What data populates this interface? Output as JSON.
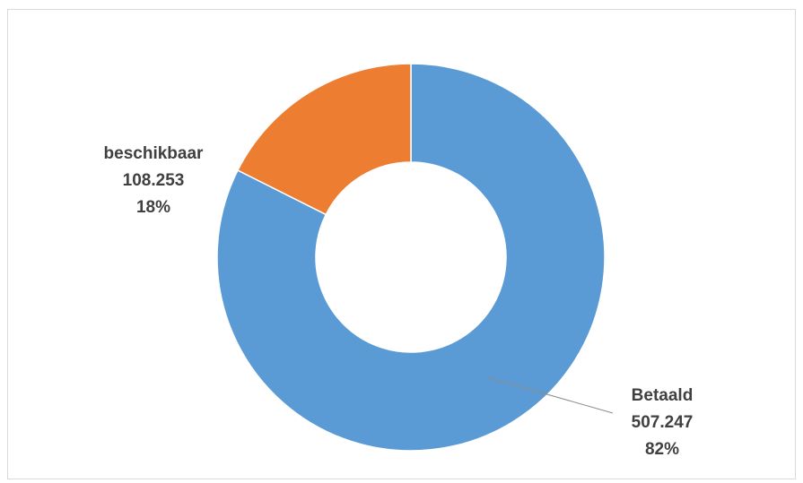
{
  "chart_data": {
    "type": "pie",
    "variant": "donut",
    "title": "",
    "categories": [
      "Betaald",
      "beschikbaar"
    ],
    "values": [
      507247,
      108253
    ],
    "value_labels": [
      "507.247",
      "108.253"
    ],
    "percent_labels": [
      "82%",
      "18%"
    ],
    "colors": [
      "#5b9bd5",
      "#ed7d31"
    ],
    "legend": "none"
  }
}
